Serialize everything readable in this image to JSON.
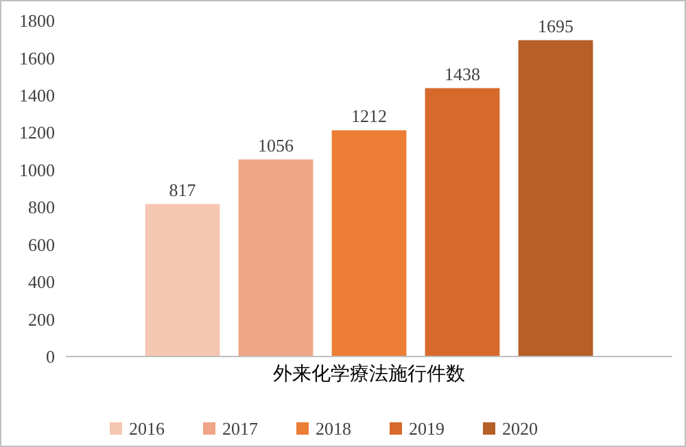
{
  "chart_data": {
    "type": "bar",
    "categories": [
      "外来化学療法施行件数"
    ],
    "series": [
      {
        "name": "2016",
        "color": "#f5c6b2",
        "values": [
          817
        ]
      },
      {
        "name": "2017",
        "color": "#f0a586",
        "values": [
          1056
        ]
      },
      {
        "name": "2018",
        "color": "#ec7d35",
        "values": [
          1212
        ]
      },
      {
        "name": "2019",
        "color": "#d7692c",
        "values": [
          1438
        ]
      },
      {
        "name": "2020",
        "color": "#b65f27",
        "values": [
          1695
        ]
      }
    ],
    "ylim": [
      0,
      1800
    ],
    "yticks": [
      0,
      200,
      400,
      600,
      800,
      1000,
      1200,
      1400,
      1600,
      1800
    ],
    "data_labels": true,
    "grid": false,
    "legend": "bottom"
  }
}
